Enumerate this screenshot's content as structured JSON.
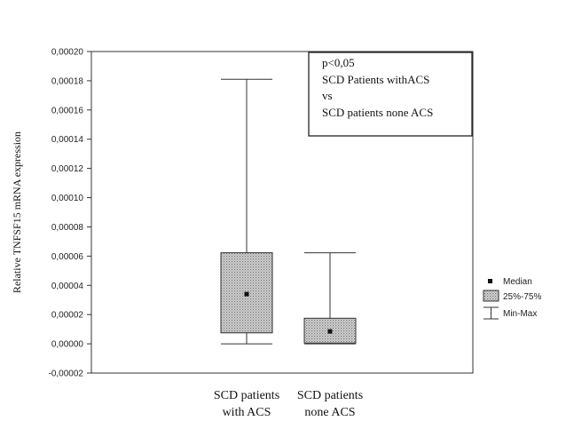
{
  "chart_data": {
    "type": "box",
    "ylabel": "Relative TNFSF15 mRNA expression",
    "ylim": [
      -2e-05,
      0.0002
    ],
    "y_ticks": [
      "-0,00002",
      "0,00000",
      "0,00002",
      "0,00004",
      "0,00006",
      "0,00008",
      "0,00010",
      "0,00012",
      "0,00014",
      "0,00016",
      "0,00018",
      "0,00020"
    ],
    "grid": false,
    "groups": [
      {
        "label_lines": [
          "SCD patients",
          "with ACS"
        ],
        "min": 0.0,
        "q1": 7.5e-06,
        "median": 3.4e-05,
        "q3": 6.23e-05,
        "max": 0.000181
      },
      {
        "label_lines": [
          "SCD patients",
          "none ACS"
        ],
        "min": 0.0,
        "q1": 5e-07,
        "median": 8.5e-06,
        "q3": 1.75e-05,
        "max": 6.23e-05
      }
    ],
    "annotation_lines": [
      "p<0,05",
      "SCD Patients withACS",
      "vs",
      "SCD patients none ACS"
    ],
    "legend": {
      "position": "right",
      "items": [
        "Median",
        "25%-75%",
        "Min-Max"
      ]
    }
  }
}
